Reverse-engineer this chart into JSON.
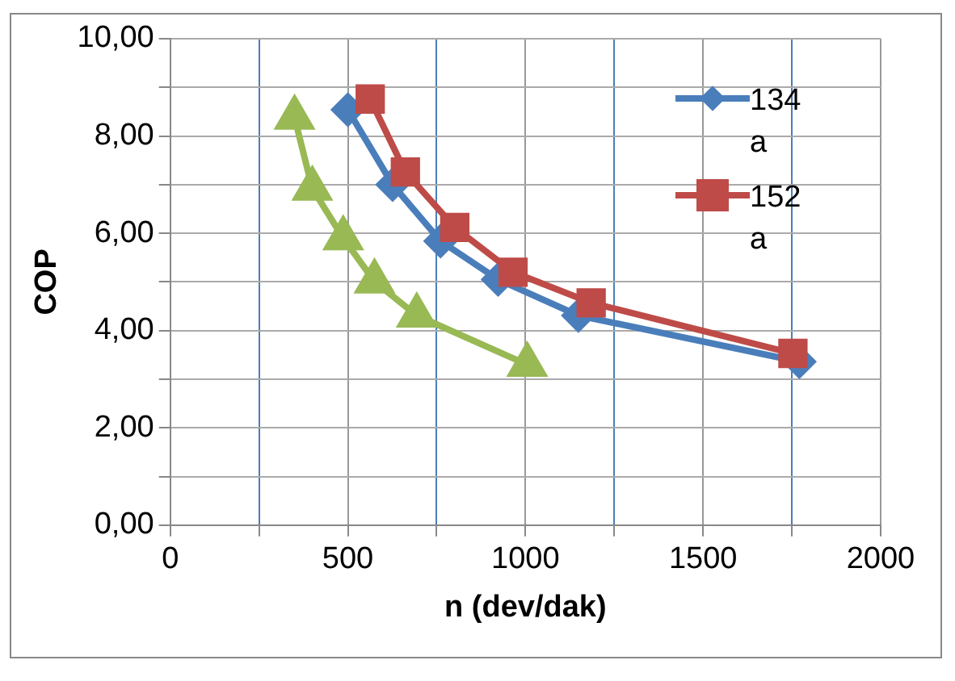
{
  "chart_data": {
    "type": "line",
    "xlabel": "n (dev/dak)",
    "ylabel": "COP",
    "xlim": [
      0,
      2000
    ],
    "xticks": [
      0,
      {
        "value": 250,
        "label": null
      },
      500,
      {
        "value": 750,
        "label": null
      },
      1000,
      {
        "value": 1250,
        "label": null
      },
      1500,
      {
        "value": 1750,
        "label": null
      },
      2000
    ],
    "ylim": [
      0,
      10
    ],
    "yticks": [
      {
        "value": 0,
        "label": "0,00"
      },
      {
        "value": 1,
        "label": null
      },
      {
        "value": 2,
        "label": "2,00"
      },
      {
        "value": 3,
        "label": null
      },
      {
        "value": 4,
        "label": "4,00"
      },
      {
        "value": 5,
        "label": null
      },
      {
        "value": 6,
        "label": "6,00"
      },
      {
        "value": 7,
        "label": null
      },
      {
        "value": 8,
        "label": "8,00"
      },
      {
        "value": 9,
        "label": null
      },
      {
        "value": 10,
        "label": "10,00"
      }
    ],
    "grid": true,
    "legend": "top right",
    "series": [
      {
        "name": "134a",
        "color": "#4a7ebb",
        "marker": "diamond",
        "x": [
          500,
          626,
          761,
          923,
          1149,
          1771
        ],
        "values": [
          8.54,
          7.0,
          5.84,
          5.05,
          4.31,
          3.36
        ]
      },
      {
        "name": "152a",
        "color": "#be4b48",
        "marker": "square",
        "x": [
          563,
          662,
          801,
          965,
          1185,
          1753
        ],
        "values": [
          8.76,
          7.26,
          6.12,
          5.2,
          4.57,
          3.53
        ]
      },
      {
        "color": "#98b954",
        "marker": "triangle",
        "x": [
          350,
          400,
          487,
          575,
          694,
          1005
        ],
        "values": [
          8.38,
          6.92,
          5.9,
          5.01,
          4.31,
          3.3
        ]
      }
    ]
  }
}
